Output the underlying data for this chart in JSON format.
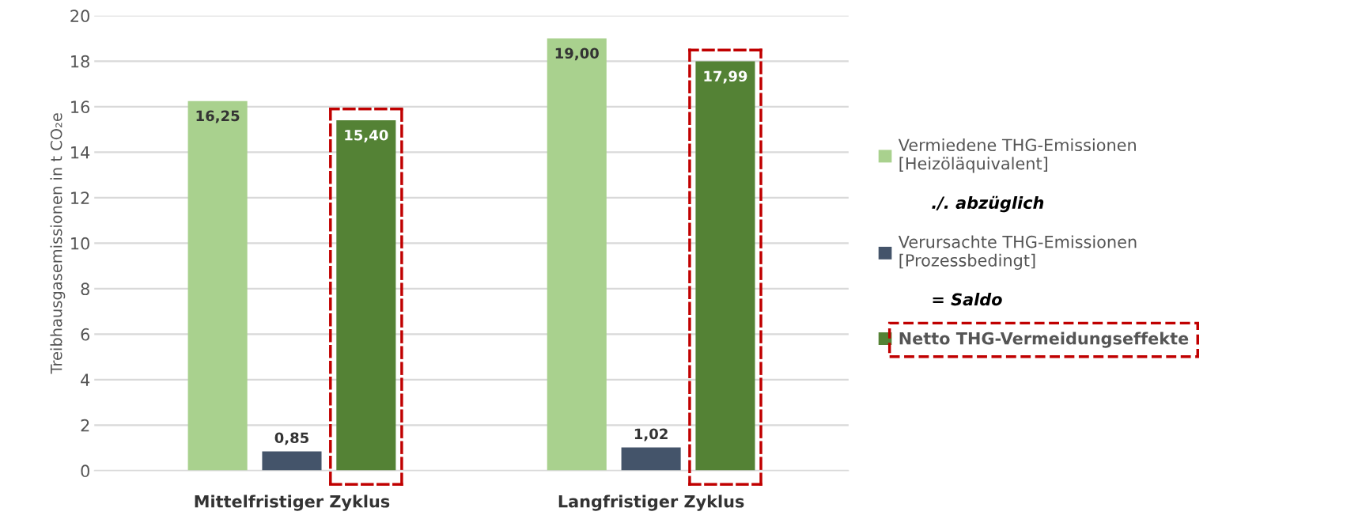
{
  "chart_data": {
    "type": "bar",
    "ylabel": "Treibhausgasemissionen in t CO₂e",
    "categories": [
      "Mittelfristiger Zyklus",
      "Langfristiger Zyklus"
    ],
    "series": [
      {
        "name": "Vermiedene THG-Emissionen\n[Heizöläquivalent]",
        "color": "#a9d18e",
        "values": [
          16.25,
          19.0
        ],
        "value_labels": [
          "16,25",
          "19,00"
        ]
      },
      {
        "name": "Verursachte THG-Emissionen\n[Prozessbedingt]",
        "color": "#44546a",
        "values": [
          0.85,
          1.02
        ],
        "value_labels": [
          "0,85",
          "1,02"
        ]
      },
      {
        "name": "Netto THG-Vermeidungseffekte",
        "color": "#548235",
        "values": [
          15.4,
          17.99
        ],
        "value_labels": [
          "15,40",
          "17,99"
        ]
      }
    ],
    "annotations": [
      "./. abzüglich",
      "= Saldo"
    ],
    "ylim": [
      0,
      20
    ],
    "yticks": [
      0,
      2,
      4,
      6,
      8,
      10,
      12,
      14,
      16,
      18,
      20
    ],
    "grid": "y",
    "legend": "right"
  }
}
